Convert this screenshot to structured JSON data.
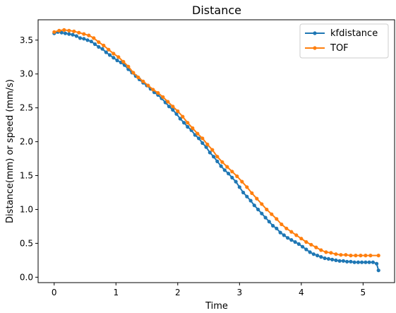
{
  "chart_data": {
    "type": "line",
    "title": "Distance",
    "xlabel": "Time",
    "ylabel": "Distance(mm) or speed (mm/s)",
    "xlim": [
      -0.26,
      5.51
    ],
    "ylim": [
      -0.08,
      3.8
    ],
    "xticks": [
      0,
      1,
      2,
      3,
      4,
      5
    ],
    "yticks": [
      0.0,
      0.5,
      1.0,
      1.5,
      2.0,
      2.5,
      3.0,
      3.5
    ],
    "ytick_labels": [
      "0.0",
      "0.5",
      "1.0",
      "1.5",
      "2.0",
      "2.5",
      "3.0",
      "3.5"
    ],
    "grid": false,
    "legend_position": "top-right",
    "series": [
      {
        "name": "kfdistance",
        "color": "#1f77b4",
        "x": [
          0.0,
          0.06,
          0.12,
          0.18,
          0.24,
          0.3,
          0.36,
          0.42,
          0.48,
          0.54,
          0.6,
          0.66,
          0.72,
          0.78,
          0.84,
          0.9,
          0.96,
          1.02,
          1.08,
          1.14,
          1.2,
          1.26,
          1.32,
          1.38,
          1.44,
          1.5,
          1.56,
          1.62,
          1.68,
          1.74,
          1.8,
          1.86,
          1.92,
          1.98,
          2.04,
          2.1,
          2.16,
          2.22,
          2.28,
          2.34,
          2.4,
          2.46,
          2.52,
          2.58,
          2.64,
          2.7,
          2.76,
          2.82,
          2.88,
          2.94,
          3.0,
          3.06,
          3.12,
          3.18,
          3.24,
          3.3,
          3.36,
          3.42,
          3.48,
          3.54,
          3.6,
          3.66,
          3.72,
          3.78,
          3.84,
          3.9,
          3.96,
          4.02,
          4.08,
          4.14,
          4.2,
          4.26,
          4.32,
          4.38,
          4.44,
          4.5,
          4.56,
          4.62,
          4.68,
          4.74,
          4.8,
          4.86,
          4.92,
          4.98,
          5.04,
          5.1,
          5.16,
          5.22,
          5.25
        ],
        "values": [
          3.6,
          3.62,
          3.61,
          3.6,
          3.59,
          3.58,
          3.56,
          3.53,
          3.52,
          3.5,
          3.48,
          3.44,
          3.4,
          3.37,
          3.32,
          3.28,
          3.24,
          3.2,
          3.17,
          3.13,
          3.07,
          3.02,
          2.97,
          2.92,
          2.87,
          2.83,
          2.78,
          2.73,
          2.69,
          2.64,
          2.58,
          2.52,
          2.47,
          2.41,
          2.34,
          2.28,
          2.22,
          2.17,
          2.1,
          2.05,
          1.98,
          1.92,
          1.84,
          1.78,
          1.71,
          1.64,
          1.58,
          1.53,
          1.47,
          1.41,
          1.33,
          1.25,
          1.19,
          1.13,
          1.06,
          1.0,
          0.94,
          0.88,
          0.82,
          0.76,
          0.72,
          0.66,
          0.62,
          0.58,
          0.55,
          0.52,
          0.49,
          0.45,
          0.41,
          0.37,
          0.34,
          0.32,
          0.3,
          0.28,
          0.27,
          0.26,
          0.25,
          0.24,
          0.24,
          0.23,
          0.23,
          0.22,
          0.22,
          0.22,
          0.22,
          0.22,
          0.22,
          0.2,
          0.1
        ]
      },
      {
        "name": "TOF",
        "color": "#ff7f0e",
        "x": [
          0.0,
          0.08,
          0.16,
          0.24,
          0.32,
          0.4,
          0.48,
          0.56,
          0.64,
          0.72,
          0.8,
          0.88,
          0.96,
          1.04,
          1.12,
          1.2,
          1.28,
          1.36,
          1.44,
          1.52,
          1.6,
          1.68,
          1.76,
          1.84,
          1.92,
          2.0,
          2.08,
          2.16,
          2.24,
          2.32,
          2.4,
          2.48,
          2.56,
          2.64,
          2.72,
          2.8,
          2.88,
          2.96,
          3.04,
          3.12,
          3.2,
          3.28,
          3.36,
          3.44,
          3.52,
          3.6,
          3.68,
          3.76,
          3.84,
          3.92,
          4.0,
          4.08,
          4.16,
          4.24,
          4.32,
          4.4,
          4.48,
          4.56,
          4.64,
          4.72,
          4.8,
          4.88,
          4.96,
          5.04,
          5.12,
          5.25
        ],
        "values": [
          3.62,
          3.64,
          3.65,
          3.64,
          3.63,
          3.61,
          3.59,
          3.57,
          3.53,
          3.47,
          3.42,
          3.36,
          3.3,
          3.25,
          3.18,
          3.11,
          3.02,
          2.95,
          2.89,
          2.83,
          2.77,
          2.72,
          2.66,
          2.59,
          2.52,
          2.45,
          2.37,
          2.28,
          2.2,
          2.12,
          2.05,
          1.96,
          1.88,
          1.78,
          1.7,
          1.63,
          1.56,
          1.49,
          1.41,
          1.33,
          1.24,
          1.16,
          1.08,
          1.0,
          0.93,
          0.86,
          0.78,
          0.72,
          0.67,
          0.62,
          0.57,
          0.52,
          0.48,
          0.44,
          0.4,
          0.37,
          0.36,
          0.34,
          0.33,
          0.33,
          0.32,
          0.32,
          0.32,
          0.32,
          0.32,
          0.32
        ]
      }
    ]
  }
}
